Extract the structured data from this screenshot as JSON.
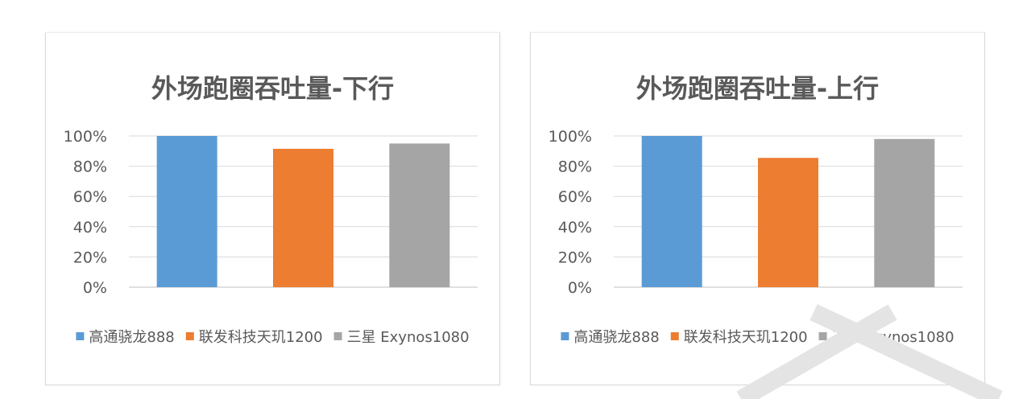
{
  "chart_data": [
    {
      "type": "bar",
      "title": "外场跑圈吞吐量-下行",
      "categories": [
        "高通骁龙888",
        "联发科技天玑1200",
        "三星 Exynos1080"
      ],
      "values": [
        100,
        91.5,
        95
      ],
      "colors": [
        "#5b9bd5",
        "#ed7d31",
        "#a5a5a5"
      ],
      "ylim": [
        0,
        100
      ],
      "yticks": [
        "0%",
        "20%",
        "40%",
        "60%",
        "80%",
        "100%"
      ],
      "grid": true,
      "legend": "bottom"
    },
    {
      "type": "bar",
      "title": "外场跑圈吞吐量-上行",
      "categories": [
        "高通骁龙888",
        "联发科技天玑1200",
        "三星 Exynos1080"
      ],
      "values": [
        100,
        85.5,
        98
      ],
      "colors": [
        "#5b9bd5",
        "#ed7d31",
        "#a5a5a5"
      ],
      "ylim": [
        0,
        100
      ],
      "yticks": [
        "0%",
        "20%",
        "40%",
        "60%",
        "80%",
        "100%"
      ],
      "grid": true,
      "legend": "bottom"
    }
  ]
}
